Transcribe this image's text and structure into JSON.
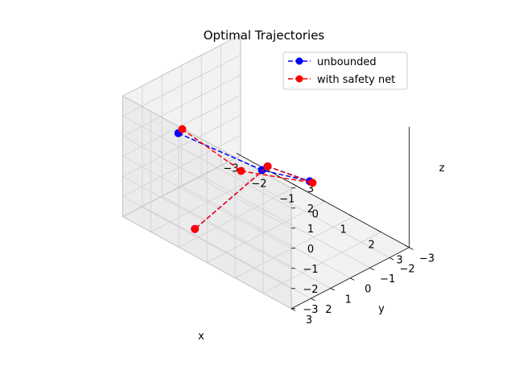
{
  "chart_data": {
    "type": "line3d",
    "title": "Optimal Trajectories",
    "xlabel": "x",
    "ylabel": "y",
    "zlabel": "z",
    "xlim": [
      -3,
      3
    ],
    "ylim": [
      -3,
      3
    ],
    "zlim": [
      -3,
      3
    ],
    "xticks": [
      "−3",
      "−2",
      "−1",
      "0",
      "1",
      "2",
      "3"
    ],
    "yticks": [
      "−3",
      "−2",
      "−1",
      "0",
      "1",
      "2",
      "3"
    ],
    "zticks": [
      "−3",
      "−2",
      "−1",
      "0",
      "1",
      "2",
      "3"
    ],
    "grid": true,
    "legend_position": "upper right",
    "series": [
      {
        "name": "unbounded",
        "color": "#0000ff",
        "marker": "circle",
        "linestyle": "dashed",
        "points": [
          [
            -2.0,
            1.6,
            1.2
          ],
          [
            -1.4,
            -1.8,
            -1.9
          ],
          [
            -0.4,
            -2.8,
            -2.2
          ],
          [
            1.6,
            2.2,
            2.6
          ],
          [
            -1.2,
            1.9,
            -2.8
          ]
        ]
      },
      {
        "name": "with safety net",
        "color": "#ff0000",
        "marker": "circle",
        "linestyle": "dashed",
        "points": [
          [
            -2.0,
            1.4,
            1.3
          ],
          [
            -2.0,
            -1.6,
            -2.3
          ],
          [
            -0.3,
            -2.8,
            -2.2
          ],
          [
            1.6,
            2.2,
            2.6
          ],
          [
            -1.2,
            1.9,
            -2.8
          ]
        ]
      }
    ]
  }
}
